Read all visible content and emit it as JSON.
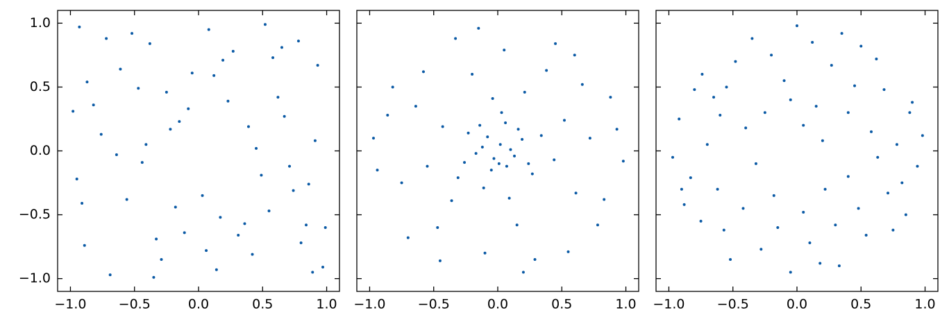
{
  "chart_data": [
    {
      "type": "scatter",
      "color": "#0b5aa5",
      "x": [
        -0.87,
        0.42,
        -0.15,
        0.93,
        -0.56,
        0.08,
        0.71,
        -0.33,
        -0.98,
        0.27,
        0.55,
        -0.72,
        0.14,
        -0.41,
        0.86,
        -0.05,
        0.62,
        -0.89,
        0.36,
        -0.22,
        0.97,
        -0.64,
        0.19,
        -0.47,
        0.78,
        -0.11,
        0.49,
        -0.93,
        0.03,
        0.67,
        -0.29,
        0.84,
        -0.76,
        0.23,
        -0.52,
        0.91,
        -0.18,
        0.58,
        -0.69,
        0.31,
        -0.95,
        0.12,
        0.74,
        -0.38,
        0.45,
        -0.82,
        0.06,
        0.89,
        -0.25,
        0.52,
        -0.61,
        0.17,
        -0.91,
        0.39,
        0.8,
        -0.44,
        0.65,
        -0.08,
        0.99,
        -0.35
      ],
      "y": [
        0.54,
        -0.81,
        0.23,
        0.67,
        -0.38,
        0.95,
        -0.12,
        -0.69,
        0.31,
        0.78,
        -0.47,
        0.88,
        -0.93,
        0.05,
        -0.26,
        0.61,
        0.42,
        -0.74,
        -0.57,
        0.17,
        -0.91,
        -0.03,
        0.71,
        0.49,
        0.86,
        -0.64,
        -0.19,
        0.97,
        -0.35,
        0.27,
        -0.85,
        -0.58,
        0.13,
        0.39,
        0.92,
        0.08,
        -0.44,
        0.73,
        -0.97,
        -0.66,
        -0.22,
        0.59,
        -0.31,
        0.84,
        0.02,
        0.36,
        -0.78,
        -0.95,
        0.46,
        0.99,
        0.64,
        -0.52,
        -0.41,
        0.19,
        -0.72,
        -0.09,
        0.81,
        0.33,
        -0.6,
        -0.99
      ],
      "xlim": [
        -1.1,
        1.1
      ],
      "ylim": [
        -1.1,
        1.1
      ],
      "xticks": [
        {
          "value": -1,
          "label": "−1.0"
        },
        {
          "value": -0.5,
          "label": "−0.5"
        },
        {
          "value": 0,
          "label": "0.0"
        },
        {
          "value": 0.5,
          "label": "0.5"
        },
        {
          "value": 1,
          "label": "1.0"
        }
      ],
      "yticks": [
        {
          "value": -1,
          "label": "−1.0"
        },
        {
          "value": -0.5,
          "label": "−0.5"
        },
        {
          "value": 0,
          "label": "0.0"
        },
        {
          "value": 0.5,
          "label": "0.5"
        },
        {
          "value": 1,
          "label": "1.0"
        }
      ]
    },
    {
      "type": "scatter",
      "color": "#0b5aa5",
      "x": [
        0.02,
        -0.08,
        0.13,
        -0.05,
        0.19,
        -0.17,
        0.06,
        -0.23,
        0.27,
        -0.11,
        0.34,
        -0.31,
        0.09,
        -0.04,
        0.44,
        -0.43,
        0.21,
        -0.36,
        0.52,
        -0.55,
        0.15,
        -0.2,
        0.61,
        -0.64,
        0.38,
        -0.47,
        0.72,
        -0.75,
        0.05,
        -0.1,
        0.66,
        -0.58,
        0.83,
        -0.86,
        0.29,
        -0.33,
        0.93,
        -0.94,
        0.55,
        -0.7,
        0.01,
        0.1,
        -0.03,
        0.07,
        -0.12,
        0.16,
        -0.14,
        0.24,
        -0.26,
        0.03,
        0.78,
        -0.82,
        0.45,
        -0.15,
        0.98,
        -0.97,
        0.2,
        0.6,
        -0.45,
        0.88
      ],
      "y": [
        0.05,
        0.11,
        -0.04,
        -0.15,
        0.09,
        -0.02,
        0.22,
        0.14,
        -0.18,
        -0.29,
        0.12,
        -0.21,
        -0.37,
        0.41,
        -0.07,
        0.19,
        0.46,
        -0.39,
        0.24,
        -0.12,
        -0.58,
        0.6,
        -0.33,
        0.35,
        0.63,
        -0.6,
        0.1,
        -0.25,
        0.79,
        -0.8,
        0.52,
        0.62,
        -0.38,
        0.28,
        -0.85,
        0.88,
        0.17,
        -0.15,
        -0.79,
        -0.68,
        -0.1,
        0.01,
        -0.06,
        -0.12,
        0.03,
        0.17,
        0.2,
        -0.1,
        -0.09,
        0.3,
        -0.58,
        0.5,
        0.84,
        0.96,
        -0.08,
        0.1,
        -0.95,
        0.75,
        -0.86,
        0.42
      ],
      "xlim": [
        -1.1,
        1.1
      ],
      "ylim": [
        -1.1,
        1.1
      ],
      "xticks": [
        {
          "value": -1,
          "label": "−1.0"
        },
        {
          "value": -0.5,
          "label": "−0.5"
        },
        {
          "value": 0,
          "label": "0.0"
        },
        {
          "value": 0.5,
          "label": "0.5"
        },
        {
          "value": 1,
          "label": "1.0"
        }
      ],
      "yticks": [
        -1,
        -0.5,
        0,
        0.5,
        1
      ]
    },
    {
      "type": "scatter",
      "color": "#0b5aa5",
      "x": [
        0.12,
        -0.65,
        0.71,
        -0.28,
        0.45,
        -0.83,
        0.05,
        0.88,
        -0.4,
        0.33,
        -0.57,
        0.62,
        -0.1,
        0.94,
        -0.92,
        0.2,
        -0.35,
        0.54,
        -0.74,
        0.78,
        -0.18,
        0.4,
        -0.62,
        0.15,
        -0.05,
        0.68,
        -0.88,
        0.27,
        -0.48,
        0.85,
        -0.97,
        0.1,
        -0.25,
        0.58,
        -0.7,
        0.35,
        -0.15,
        0.75,
        -0.52,
        0.98,
        0,
        -0.8,
        0.48,
        -0.32,
        0.22,
        -0.6,
        0.9,
        -0.42,
        0.05,
        0.63,
        -0.2,
        0.3,
        -0.9,
        0.5,
        -0.75,
        0.82,
        -0.05,
        0.4,
        -0.55,
        0.18
      ],
      "y": [
        0.85,
        0.42,
        -0.33,
        -0.77,
        0.51,
        -0.21,
        -0.48,
        0.3,
        0.18,
        -0.9,
        -0.62,
        0.72,
        0.55,
        -0.12,
        0.25,
        0.08,
        0.88,
        -0.66,
        0.6,
        0.05,
        -0.35,
        -0.2,
        -0.3,
        0.35,
        -0.95,
        0.48,
        -0.42,
        0.67,
        0.7,
        -0.5,
        -0.05,
        -0.72,
        0.3,
        0.15,
        0.05,
        0.92,
        -0.6,
        -0.62,
        -0.85,
        0.12,
        0.98,
        0.48,
        -0.45,
        -0.1,
        -0.3,
        0.28,
        0.38,
        -0.45,
        0.2,
        -0.05,
        0.75,
        -0.58,
        -0.3,
        0.82,
        -0.55,
        -0.25,
        0.4,
        0.3,
        0.5,
        -0.88
      ],
      "xlim": [
        -1.1,
        1.1
      ],
      "ylim": [
        -1.1,
        1.1
      ],
      "xticks": [
        {
          "value": -1,
          "label": "−1.0"
        },
        {
          "value": -0.5,
          "label": "−0.5"
        },
        {
          "value": 0,
          "label": "0.0"
        },
        {
          "value": 0.5,
          "label": "0.5"
        },
        {
          "value": 1,
          "label": "1.0"
        }
      ],
      "yticks": [
        -1,
        -0.5,
        0,
        0.5,
        1
      ]
    }
  ]
}
